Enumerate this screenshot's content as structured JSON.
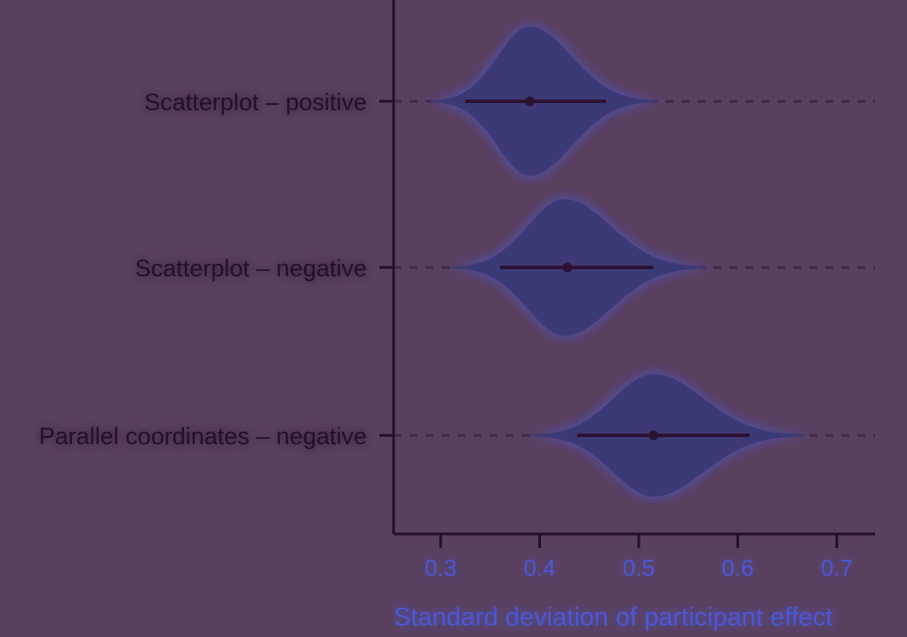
{
  "chart_data": {
    "type": "violin",
    "xlabel": "Standard deviation of participant effect",
    "ylabel": "",
    "xlim": [
      0.25,
      0.74
    ],
    "x_ticks": [
      "0.3",
      "0.4",
      "0.5",
      "0.6",
      "0.7"
    ],
    "orientation": "horizontal",
    "grid": "dashed guide line per category",
    "categories": [
      "Scatterplot – positive",
      "Scatterplot – negative",
      "Parallel coordinates – negative"
    ],
    "series": [
      {
        "point_estimate": 0.39,
        "interval": [
          0.325,
          0.467
        ],
        "density_range": [
          0.29,
          0.52
        ],
        "density_peak": 0.39
      },
      {
        "point_estimate": 0.428,
        "interval": [
          0.36,
          0.515
        ],
        "density_range": [
          0.31,
          0.57
        ],
        "density_peak": 0.425
      },
      {
        "point_estimate": 0.515,
        "interval": [
          0.438,
          0.612
        ],
        "density_range": [
          0.39,
          0.67
        ],
        "density_peak": 0.515
      }
    ],
    "colors": {
      "background": "#5a405f",
      "violin_fill": "#3b3a76",
      "violin_glow": "#4c5cd8",
      "interval": "#2b1233",
      "axis": "#231029",
      "guide": "#3d2a4a",
      "tick_text": "#4a58d6",
      "label_text": "#231029"
    }
  }
}
